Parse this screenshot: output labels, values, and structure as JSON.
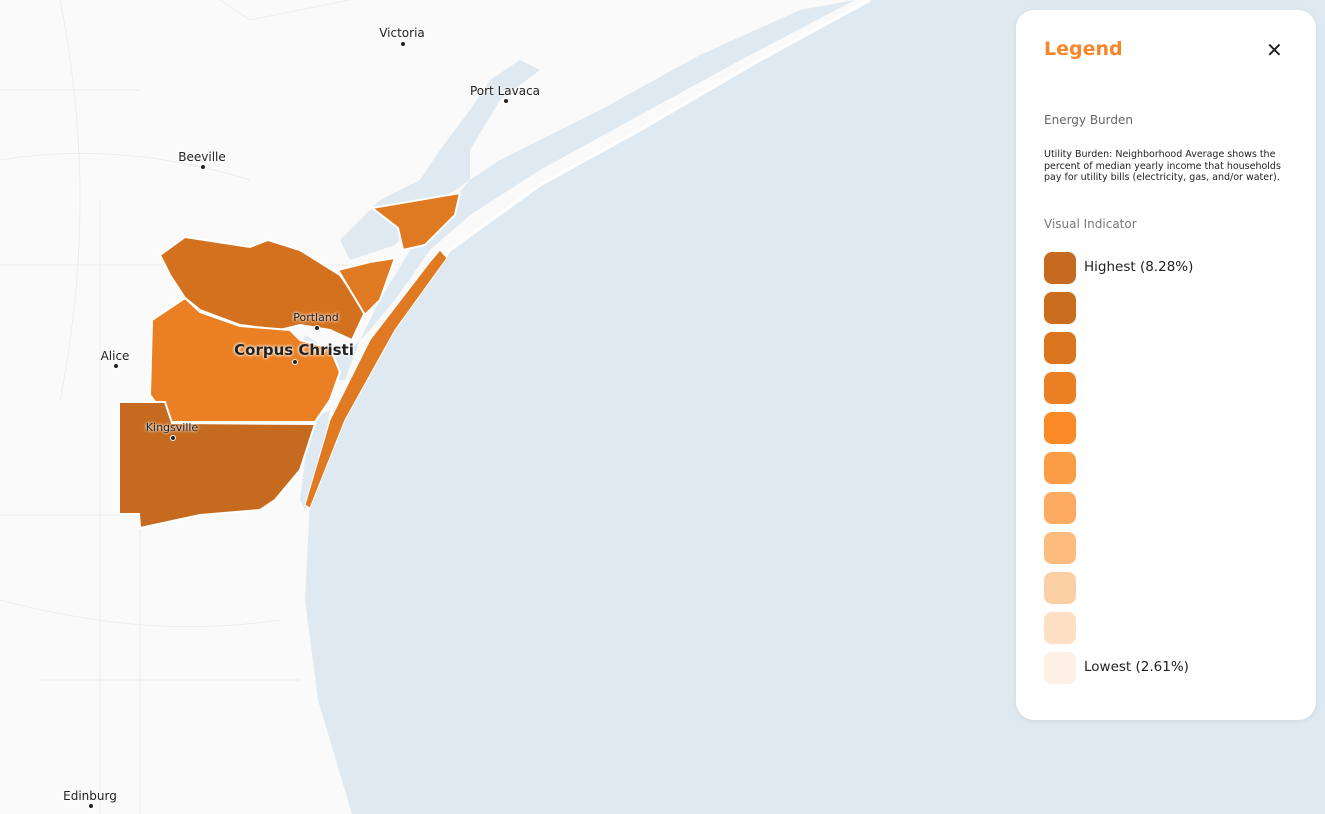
{
  "map": {
    "cities": [
      {
        "name": "Victoria",
        "size": "normal"
      },
      {
        "name": "Port Lavaca",
        "size": "normal"
      },
      {
        "name": "Beeville",
        "size": "normal"
      },
      {
        "name": "Portland",
        "size": "normal"
      },
      {
        "name": "Corpus Christi",
        "size": "big"
      },
      {
        "name": "Alice",
        "size": "normal"
      },
      {
        "name": "Kingsville",
        "size": "normal"
      },
      {
        "name": "Edinburg",
        "size": "normal"
      }
    ],
    "colors": {
      "land": "#fafafa",
      "water": "#dfe9f1"
    }
  },
  "legend": {
    "title": "Legend",
    "close_icon": "close-icon",
    "subtitle": "Energy Burden",
    "description": "Utility Burden: Neighborhood Average shows the percent of median yearly income that households pay for utility bills (electricity, gas, and/or water).",
    "visual_indicator_label": "Visual Indicator",
    "scale": [
      {
        "color": "#c56a1e",
        "label": "Highest (8.28%)"
      },
      {
        "color": "#ca6d1f",
        "label": ""
      },
      {
        "color": "#dc7520",
        "label": ""
      },
      {
        "color": "#ea8023",
        "label": ""
      },
      {
        "color": "#fb8b27",
        "label": ""
      },
      {
        "color": "#fb9d45",
        "label": ""
      },
      {
        "color": "#fcab60",
        "label": ""
      },
      {
        "color": "#fdbc7e",
        "label": ""
      },
      {
        "color": "#facfa4",
        "label": ""
      },
      {
        "color": "#fde0c3",
        "label": ""
      },
      {
        "color": "#fef0e4",
        "label": "Lowest (2.61%)"
      }
    ],
    "accent": "#f7862a"
  }
}
